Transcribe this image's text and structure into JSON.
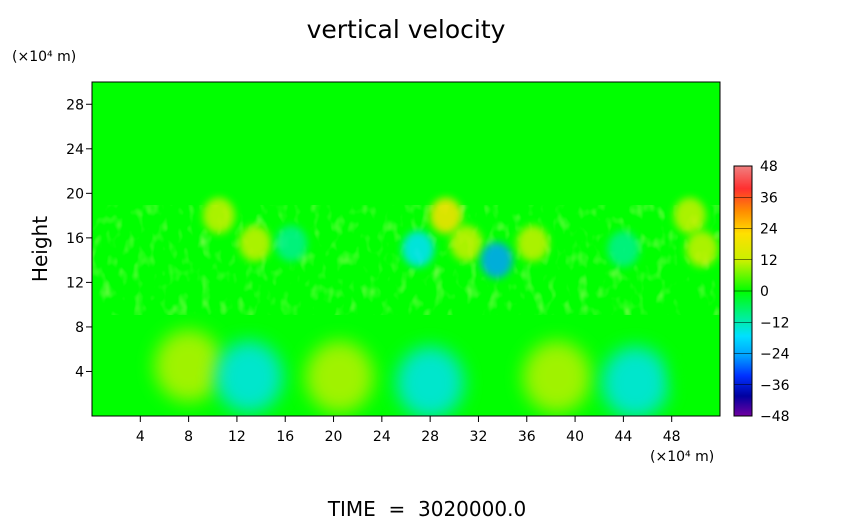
{
  "chart_data": {
    "type": "heatmap",
    "title": "vertical velocity",
    "ylabel": "Height",
    "xunit": "(×10⁴ m)",
    "yunit": "(×10⁴ m)",
    "footer": "TIME  =  3020000.0",
    "xlim": [
      0,
      52
    ],
    "ylim": [
      0,
      30
    ],
    "xticks": [
      4,
      8,
      12,
      16,
      20,
      24,
      28,
      32,
      36,
      40,
      44,
      48
    ],
    "yticks": [
      4,
      8,
      12,
      16,
      20,
      24,
      28
    ],
    "colorbar": {
      "min": -48,
      "max": 48,
      "ticks": [
        48,
        36,
        24,
        12,
        0,
        -12,
        -24,
        -36,
        -48
      ],
      "colors": [
        "#f08080",
        "#ff3030",
        "#ff8c00",
        "#ffe000",
        "#c8f000",
        "#00ff00",
        "#00f090",
        "#00e0ff",
        "#00a0ff",
        "#0030ff",
        "#0000a0",
        "#7000a0"
      ]
    },
    "features": [
      {
        "x": 3,
        "y": 3.5,
        "value": 6
      },
      {
        "x": 8,
        "y": 4.5,
        "value": 9
      },
      {
        "x": 13,
        "y": 3.5,
        "value": -12
      },
      {
        "x": 20.5,
        "y": 3.5,
        "value": 12
      },
      {
        "x": 28,
        "y": 3,
        "value": -9
      },
      {
        "x": 38.5,
        "y": 3.5,
        "value": 14
      },
      {
        "x": 45,
        "y": 3,
        "value": -12
      },
      {
        "x": 51,
        "y": 4,
        "value": 8
      },
      {
        "x": 10.5,
        "y": 18,
        "value": 10
      },
      {
        "x": 13.5,
        "y": 15.5,
        "value": 14
      },
      {
        "x": 27,
        "y": 15,
        "value": -12
      },
      {
        "x": 29.3,
        "y": 18,
        "value": 26
      },
      {
        "x": 31,
        "y": 15.5,
        "value": 16
      },
      {
        "x": 33.5,
        "y": 14,
        "value": -20
      },
      {
        "x": 36.5,
        "y": 15.5,
        "value": 12
      },
      {
        "x": 49.5,
        "y": 18,
        "value": 16
      },
      {
        "x": 50.5,
        "y": 15,
        "value": 12
      },
      {
        "x": 44,
        "y": 15,
        "value": -8
      },
      {
        "x": 16.5,
        "y": 15.5,
        "value": -8
      }
    ]
  }
}
